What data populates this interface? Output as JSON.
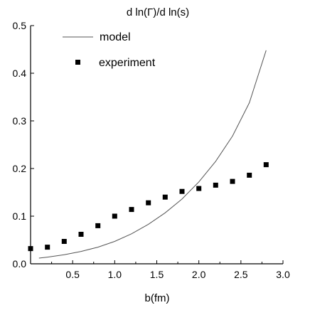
{
  "chart_data": {
    "type": "scatter",
    "title": "d ln(Γ)/d ln(s)",
    "xlabel": "b(fm)",
    "ylabel": "",
    "xlim": [
      0.0,
      3.0
    ],
    "ylim": [
      0.0,
      0.5
    ],
    "grid": false,
    "legend_position": "top-left",
    "x_ticks": [
      "0.5",
      "1.0",
      "1.5",
      "2.0",
      "2.5",
      "3.0"
    ],
    "y_ticks": [
      "0.0",
      "0.1",
      "0.2",
      "0.3",
      "0.4",
      "0.5"
    ],
    "series": [
      {
        "name": "model",
        "type": "line",
        "color": "#555555",
        "x": [
          0.1,
          0.2,
          0.4,
          0.6,
          0.8,
          1.0,
          1.2,
          1.4,
          1.6,
          1.8,
          2.0,
          2.2,
          2.4,
          2.6,
          2.8
        ],
        "y": [
          0.012,
          0.014,
          0.019,
          0.026,
          0.035,
          0.047,
          0.063,
          0.083,
          0.107,
          0.136,
          0.172,
          0.215,
          0.268,
          0.338,
          0.448
        ]
      },
      {
        "name": "experiment",
        "type": "scatter",
        "color": "#000000",
        "marker": "square",
        "x": [
          0.0,
          0.2,
          0.4,
          0.6,
          0.8,
          1.0,
          1.2,
          1.4,
          1.6,
          1.8,
          2.0,
          2.2,
          2.4,
          2.6,
          2.8
        ],
        "y": [
          0.032,
          0.035,
          0.047,
          0.062,
          0.08,
          0.1,
          0.114,
          0.128,
          0.14,
          0.152,
          0.158,
          0.165,
          0.173,
          0.186,
          0.208
        ]
      }
    ]
  }
}
